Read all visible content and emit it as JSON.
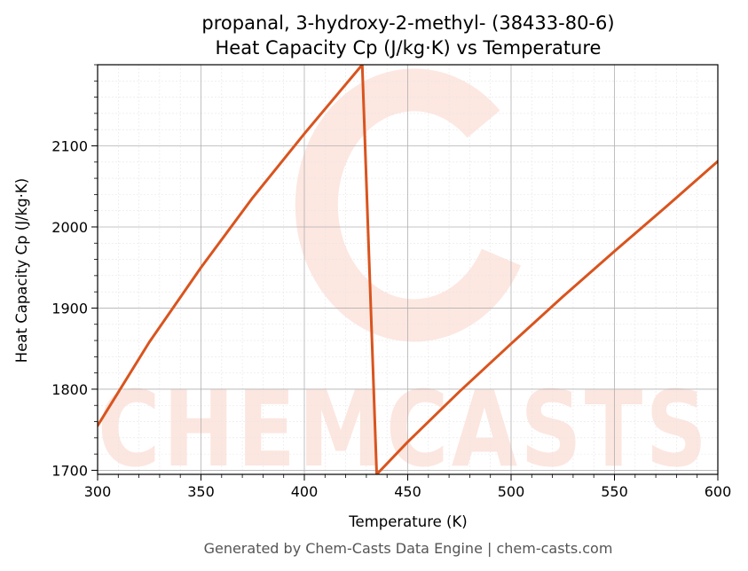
{
  "chart_data": {
    "type": "line",
    "title_line1": "propanal, 3-hydroxy-2-methyl- (38433-80-6)",
    "title_line2": "Heat Capacity Cp (J/kg·K) vs Temperature",
    "xlabel": "Temperature (K)",
    "ylabel": "Heat Capacity Cp (J/kg·K)",
    "xlim": [
      300,
      600
    ],
    "ylim": [
      1695,
      2200
    ],
    "x_ticks": [
      300,
      350,
      400,
      450,
      500,
      550,
      600
    ],
    "y_ticks": [
      1700,
      1800,
      1900,
      2000,
      2100
    ],
    "x_tick_labels": [
      "300",
      "350",
      "400",
      "450",
      "500",
      "550",
      "600"
    ],
    "y_tick_labels": [
      "1700",
      "1800",
      "1900",
      "2000",
      "2100"
    ],
    "grid": true,
    "series": [
      {
        "color": "#d9541e",
        "points": [
          [
            300,
            1755
          ],
          [
            325,
            1858
          ],
          [
            350,
            1950
          ],
          [
            375,
            2036
          ],
          [
            400,
            2115
          ],
          [
            428,
            2200
          ],
          [
            435,
            1695
          ],
          [
            450,
            1735
          ],
          [
            475,
            1797
          ],
          [
            500,
            1856
          ],
          [
            525,
            1914
          ],
          [
            550,
            1970
          ],
          [
            575,
            2025
          ],
          [
            600,
            2081
          ]
        ]
      }
    ]
  },
  "watermark": {
    "text": "CHEMCASTS",
    "color": "#fbd3c8"
  },
  "footer": {
    "text": "Generated by Chem-Casts Data Engine | chem-casts.com"
  }
}
